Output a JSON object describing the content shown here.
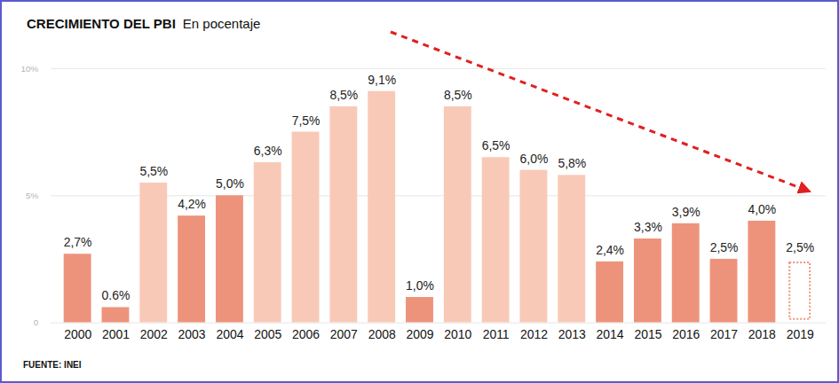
{
  "chart_data": {
    "type": "bar",
    "title": "CRECIMIENTO DEL PBI",
    "subtitle": "En pocentaje",
    "source": "FUENTE: INEI",
    "categories": [
      "2000",
      "2001",
      "2002",
      "2003",
      "2004",
      "2005",
      "2006",
      "2007",
      "2008",
      "2009",
      "2010",
      "2011",
      "2012",
      "2013",
      "2014",
      "2015",
      "2016",
      "2017",
      "2018",
      "2019"
    ],
    "values": [
      2.7,
      0.6,
      5.5,
      4.2,
      5.0,
      6.3,
      7.5,
      8.5,
      9.1,
      1.0,
      8.5,
      6.5,
      6.0,
      5.8,
      2.4,
      3.3,
      3.9,
      2.5,
      4.0,
      2.5
    ],
    "value_labels": [
      "2,7%",
      "0.6%",
      "5,5%",
      "4,2%",
      "5,0%",
      "6,3%",
      "7,5%",
      "8,5%",
      "9,1%",
      "1,0%",
      "8,5%",
      "6,5%",
      "6,0%",
      "5,8%",
      "2,4%",
      "3,3%",
      "3,9%",
      "2,5%",
      "4,0%",
      "2,5%"
    ],
    "colors": [
      "#ee937b",
      "#ee937b",
      "#f9c9b7",
      "#ee937b",
      "#ee937b",
      "#f9c9b7",
      "#f9c9b7",
      "#f9c9b7",
      "#f9c9b7",
      "#ee937b",
      "#f9c9b7",
      "#f9c9b7",
      "#f9c9b7",
      "#f9c9b7",
      "#ee937b",
      "#ee937b",
      "#ee937b",
      "#ee937b",
      "#ee937b",
      "none"
    ],
    "ylim": [
      0,
      10
    ],
    "yticks": [
      0,
      {
        "value": 5,
        "label": "5%"
      },
      {
        "value": 10,
        "label": "10%"
      }
    ],
    "grid": true,
    "data_labels": true
  }
}
